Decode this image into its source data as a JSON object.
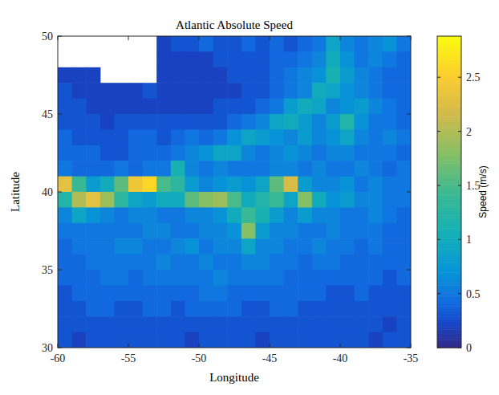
{
  "chart_data": {
    "type": "heatmap",
    "title": "Atlantic Absolute Speed",
    "x_label": "Longitude",
    "y_label": "Latitude",
    "xlim": [
      -60,
      -35
    ],
    "ylim": [
      30,
      50
    ],
    "xticks": [
      -60,
      -55,
      -50,
      -45,
      -40,
      -35
    ],
    "yticks": [
      30,
      35,
      40,
      45,
      50
    ],
    "x": [
      -59.5,
      -58.5,
      -57.5,
      -56.5,
      -55.5,
      -54.5,
      -53.5,
      -52.5,
      -51.5,
      -50.5,
      -49.5,
      -48.5,
      -47.5,
      -46.5,
      -45.5,
      -44.5,
      -43.5,
      -42.5,
      -41.5,
      -40.5,
      -39.5,
      -38.5,
      -37.5,
      -36.5,
      -35.5
    ],
    "y": [
      49.5,
      48.5,
      47.5,
      46.5,
      45.5,
      44.5,
      43.5,
      42.5,
      41.5,
      40.5,
      39.5,
      38.5,
      37.5,
      36.5,
      35.5,
      34.5,
      33.5,
      32.5,
      31.5,
      30.5
    ],
    "cells": [
      [
        null,
        null,
        null,
        null,
        null,
        null,
        null,
        0.2,
        0.3,
        0.3,
        0.4,
        0.3,
        0.3,
        0.4,
        0.3,
        0.4,
        0.3,
        0.4,
        0.5,
        0.9,
        0.6,
        0.5,
        0.6,
        0.7,
        0.5
      ],
      [
        null,
        null,
        null,
        null,
        null,
        null,
        null,
        0.2,
        0.2,
        0.2,
        0.2,
        0.3,
        0.3,
        0.3,
        0.3,
        0.4,
        0.4,
        0.5,
        0.6,
        1.0,
        0.7,
        0.5,
        0.6,
        0.5,
        0.4
      ],
      [
        0.2,
        0.2,
        0.2,
        null,
        null,
        null,
        null,
        0.2,
        0.2,
        0.2,
        0.2,
        0.2,
        0.3,
        0.3,
        0.3,
        0.4,
        0.5,
        0.6,
        0.7,
        1.1,
        0.8,
        0.6,
        0.5,
        0.4,
        0.4
      ],
      [
        0.3,
        0.2,
        0.2,
        0.2,
        0.2,
        0.2,
        0.3,
        0.2,
        0.2,
        0.2,
        0.2,
        0.2,
        0.2,
        0.3,
        0.3,
        0.4,
        0.5,
        0.6,
        1.0,
        0.9,
        0.7,
        0.6,
        0.5,
        0.4,
        0.4
      ],
      [
        0.3,
        0.3,
        0.2,
        0.2,
        0.2,
        0.2,
        0.2,
        0.2,
        0.2,
        0.2,
        0.2,
        0.3,
        0.3,
        0.3,
        0.4,
        0.5,
        0.8,
        1.0,
        0.9,
        0.6,
        0.7,
        0.8,
        0.6,
        0.5,
        0.4
      ],
      [
        0.3,
        0.3,
        0.3,
        0.2,
        0.3,
        0.3,
        0.3,
        0.3,
        0.3,
        0.3,
        0.3,
        0.3,
        0.4,
        0.5,
        0.6,
        0.9,
        1.0,
        0.8,
        0.6,
        0.8,
        1.2,
        0.7,
        0.5,
        0.5,
        0.4
      ],
      [
        0.4,
        0.3,
        0.3,
        0.3,
        0.3,
        0.4,
        0.4,
        0.3,
        0.4,
        0.5,
        0.4,
        0.5,
        0.7,
        0.9,
        0.8,
        0.7,
        0.6,
        0.8,
        0.6,
        0.7,
        0.9,
        0.6,
        0.5,
        0.6,
        0.5
      ],
      [
        0.4,
        0.4,
        0.4,
        0.3,
        0.3,
        0.4,
        0.4,
        0.4,
        0.5,
        0.6,
        0.7,
        0.9,
        0.9,
        0.6,
        0.5,
        0.6,
        0.7,
        0.6,
        0.5,
        0.6,
        0.6,
        0.5,
        0.5,
        0.5,
        0.4
      ],
      [
        0.5,
        0.4,
        0.4,
        0.4,
        0.5,
        0.4,
        0.5,
        0.5,
        1.1,
        0.6,
        0.5,
        0.6,
        0.5,
        0.5,
        0.5,
        0.6,
        0.6,
        0.5,
        0.6,
        0.5,
        0.5,
        0.6,
        0.5,
        0.4,
        0.5
      ],
      [
        2.3,
        1.4,
        0.8,
        1.0,
        1.6,
        2.4,
        2.6,
        1.5,
        1.3,
        0.8,
        0.6,
        0.7,
        0.8,
        0.7,
        0.9,
        1.6,
        2.2,
        0.8,
        0.6,
        0.6,
        0.7,
        0.5,
        0.6,
        0.5,
        0.5
      ],
      [
        1.2,
        2.0,
        2.3,
        1.9,
        1.3,
        0.9,
        0.8,
        1.0,
        1.0,
        1.6,
        1.8,
        1.9,
        1.5,
        1.0,
        1.2,
        1.4,
        0.9,
        1.8,
        1.0,
        0.7,
        0.8,
        0.6,
        0.6,
        0.5,
        0.5
      ],
      [
        0.6,
        0.9,
        0.7,
        0.6,
        0.5,
        0.6,
        0.6,
        0.5,
        0.5,
        0.6,
        0.6,
        0.7,
        1.0,
        1.4,
        1.1,
        0.8,
        0.6,
        0.8,
        0.6,
        0.6,
        0.5,
        0.5,
        0.6,
        0.5,
        0.4
      ],
      [
        0.5,
        0.5,
        0.5,
        0.5,
        0.5,
        0.5,
        0.6,
        0.6,
        0.5,
        0.5,
        0.6,
        0.6,
        0.7,
        1.8,
        0.8,
        0.6,
        0.6,
        0.5,
        0.5,
        0.6,
        0.5,
        0.5,
        0.5,
        0.4,
        0.4
      ],
      [
        0.4,
        0.5,
        0.5,
        0.5,
        0.6,
        0.6,
        0.5,
        0.5,
        0.6,
        0.7,
        0.5,
        0.6,
        0.6,
        0.9,
        0.6,
        0.6,
        0.5,
        0.5,
        0.6,
        0.5,
        0.5,
        0.4,
        0.5,
        0.4,
        0.4
      ],
      [
        0.4,
        0.4,
        0.5,
        0.5,
        0.5,
        0.5,
        0.5,
        0.6,
        0.5,
        0.5,
        0.6,
        0.5,
        0.5,
        0.6,
        0.6,
        0.5,
        0.5,
        0.4,
        0.5,
        0.5,
        0.4,
        0.4,
        0.4,
        0.4,
        0.4
      ],
      [
        0.4,
        0.4,
        0.4,
        0.5,
        0.5,
        0.4,
        0.5,
        0.5,
        0.5,
        0.5,
        0.5,
        0.6,
        0.5,
        0.5,
        0.5,
        0.5,
        0.4,
        0.4,
        0.4,
        0.4,
        0.4,
        0.4,
        0.4,
        0.3,
        0.4
      ],
      [
        0.3,
        0.4,
        0.4,
        0.4,
        0.4,
        0.4,
        0.4,
        0.4,
        0.4,
        0.4,
        0.5,
        0.5,
        0.4,
        0.4,
        0.4,
        0.4,
        0.4,
        0.4,
        0.4,
        0.3,
        0.3,
        0.4,
        0.3,
        0.3,
        0.3
      ],
      [
        0.3,
        0.3,
        0.4,
        0.4,
        0.3,
        0.3,
        0.4,
        0.4,
        0.3,
        0.4,
        0.4,
        0.4,
        0.4,
        0.3,
        0.3,
        0.4,
        0.4,
        0.3,
        0.3,
        0.3,
        0.3,
        0.3,
        0.3,
        0.3,
        0.3
      ],
      [
        0.3,
        0.3,
        0.3,
        0.3,
        0.3,
        0.3,
        0.3,
        0.3,
        0.3,
        0.3,
        0.3,
        0.3,
        0.3,
        0.3,
        0.3,
        0.3,
        0.3,
        0.3,
        0.3,
        0.3,
        0.3,
        0.3,
        0.3,
        0.2,
        0.3
      ],
      [
        0.3,
        0.2,
        0.3,
        0.3,
        0.3,
        0.3,
        0.3,
        0.3,
        0.3,
        0.2,
        0.3,
        0.3,
        0.3,
        0.3,
        0.2,
        0.3,
        0.3,
        0.3,
        0.3,
        0.3,
        0.3,
        0.3,
        0.2,
        0.3,
        0.3
      ]
    ],
    "colorbar": {
      "label": "Speed (m/s)",
      "range": [
        0,
        2.88
      ],
      "ticks": [
        0,
        0.5,
        1,
        1.5,
        2,
        2.5
      ]
    }
  }
}
